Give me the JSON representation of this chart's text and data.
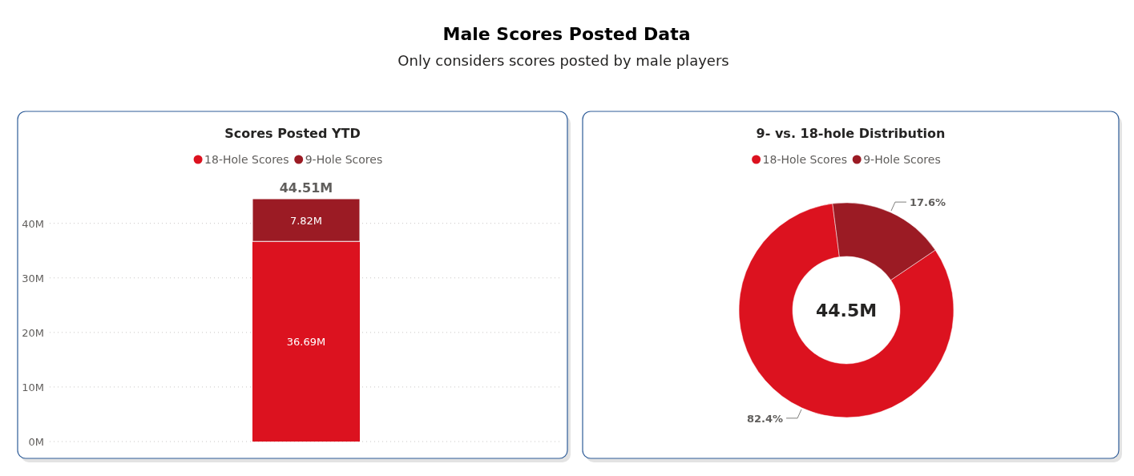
{
  "chart_data": [
    {
      "type": "other",
      "title": "Male Scores Posted Data",
      "subtitle": "Only considers scores posted by male players"
    },
    {
      "type": "bar",
      "title": "Scores Posted YTD",
      "categories": [
        null
      ],
      "stacked": true,
      "ylim": [
        0,
        44.51
      ],
      "yticks": [
        {
          "value": 0,
          "label": "0M"
        },
        {
          "value": 10,
          "label": "10M"
        },
        {
          "value": 20,
          "label": "20M"
        },
        {
          "value": 30,
          "label": "30M"
        },
        {
          "value": 40,
          "label": "40M"
        }
      ],
      "grid": "y",
      "legend": "top",
      "series": [
        {
          "name": "18-Hole Scores",
          "color": "#dc121f",
          "values": [
            36.69
          ],
          "value_labels": [
            "36.69M"
          ]
        },
        {
          "name": "9-Hole Scores",
          "color": "#9b1b24",
          "values": [
            7.82
          ],
          "value_labels": [
            "7.82M"
          ]
        }
      ],
      "totals": [
        "44.51M"
      ]
    },
    {
      "type": "donut",
      "title": "9- vs. 18-hole Distribution",
      "categories": [
        "18-Hole Scores",
        "9-Hole Scores"
      ],
      "values": [
        82.4,
        17.6
      ],
      "colors": [
        "#dc121f",
        "#9b1b24"
      ],
      "value_labels": [
        "82.4%",
        "17.6%"
      ],
      "legend": "top",
      "annotations": [
        "44.5M"
      ]
    }
  ]
}
